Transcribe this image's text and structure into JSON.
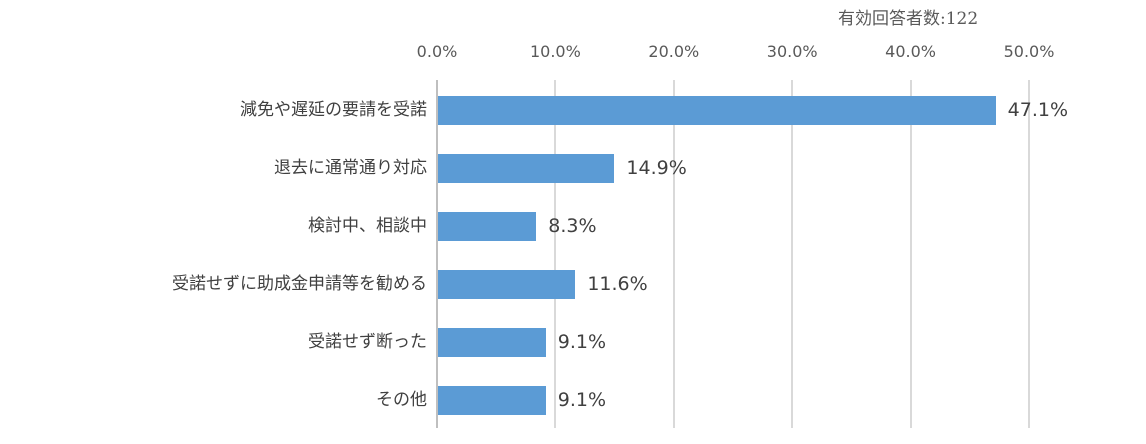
{
  "annotation": "有効回答者数:122",
  "chart_data": {
    "type": "bar",
    "orientation": "horizontal",
    "title": "",
    "xlabel": "",
    "ylabel": "",
    "xlim": [
      0,
      50
    ],
    "x_ticks": [
      "0.0%",
      "10.0%",
      "20.0%",
      "30.0%",
      "40.0%",
      "50.0%"
    ],
    "x_tick_values": [
      0,
      10,
      20,
      30,
      40,
      50
    ],
    "grid": true,
    "axis_position": "top",
    "legend": null,
    "bar_color": "#5B9BD5",
    "categories": [
      "減免や遅延の要請を受諾",
      "退去に通常通り対応",
      "検討中、相談中",
      "受諾せずに助成金申請等を勧める",
      "受諾せず断った",
      "その他"
    ],
    "values": [
      47.1,
      14.9,
      8.3,
      11.6,
      9.1,
      9.1
    ],
    "value_labels": [
      "47.1%",
      "14.9%",
      "8.3%",
      "11.6%",
      "9.1%",
      "9.1%"
    ],
    "unit": "%",
    "respondents": 122
  }
}
